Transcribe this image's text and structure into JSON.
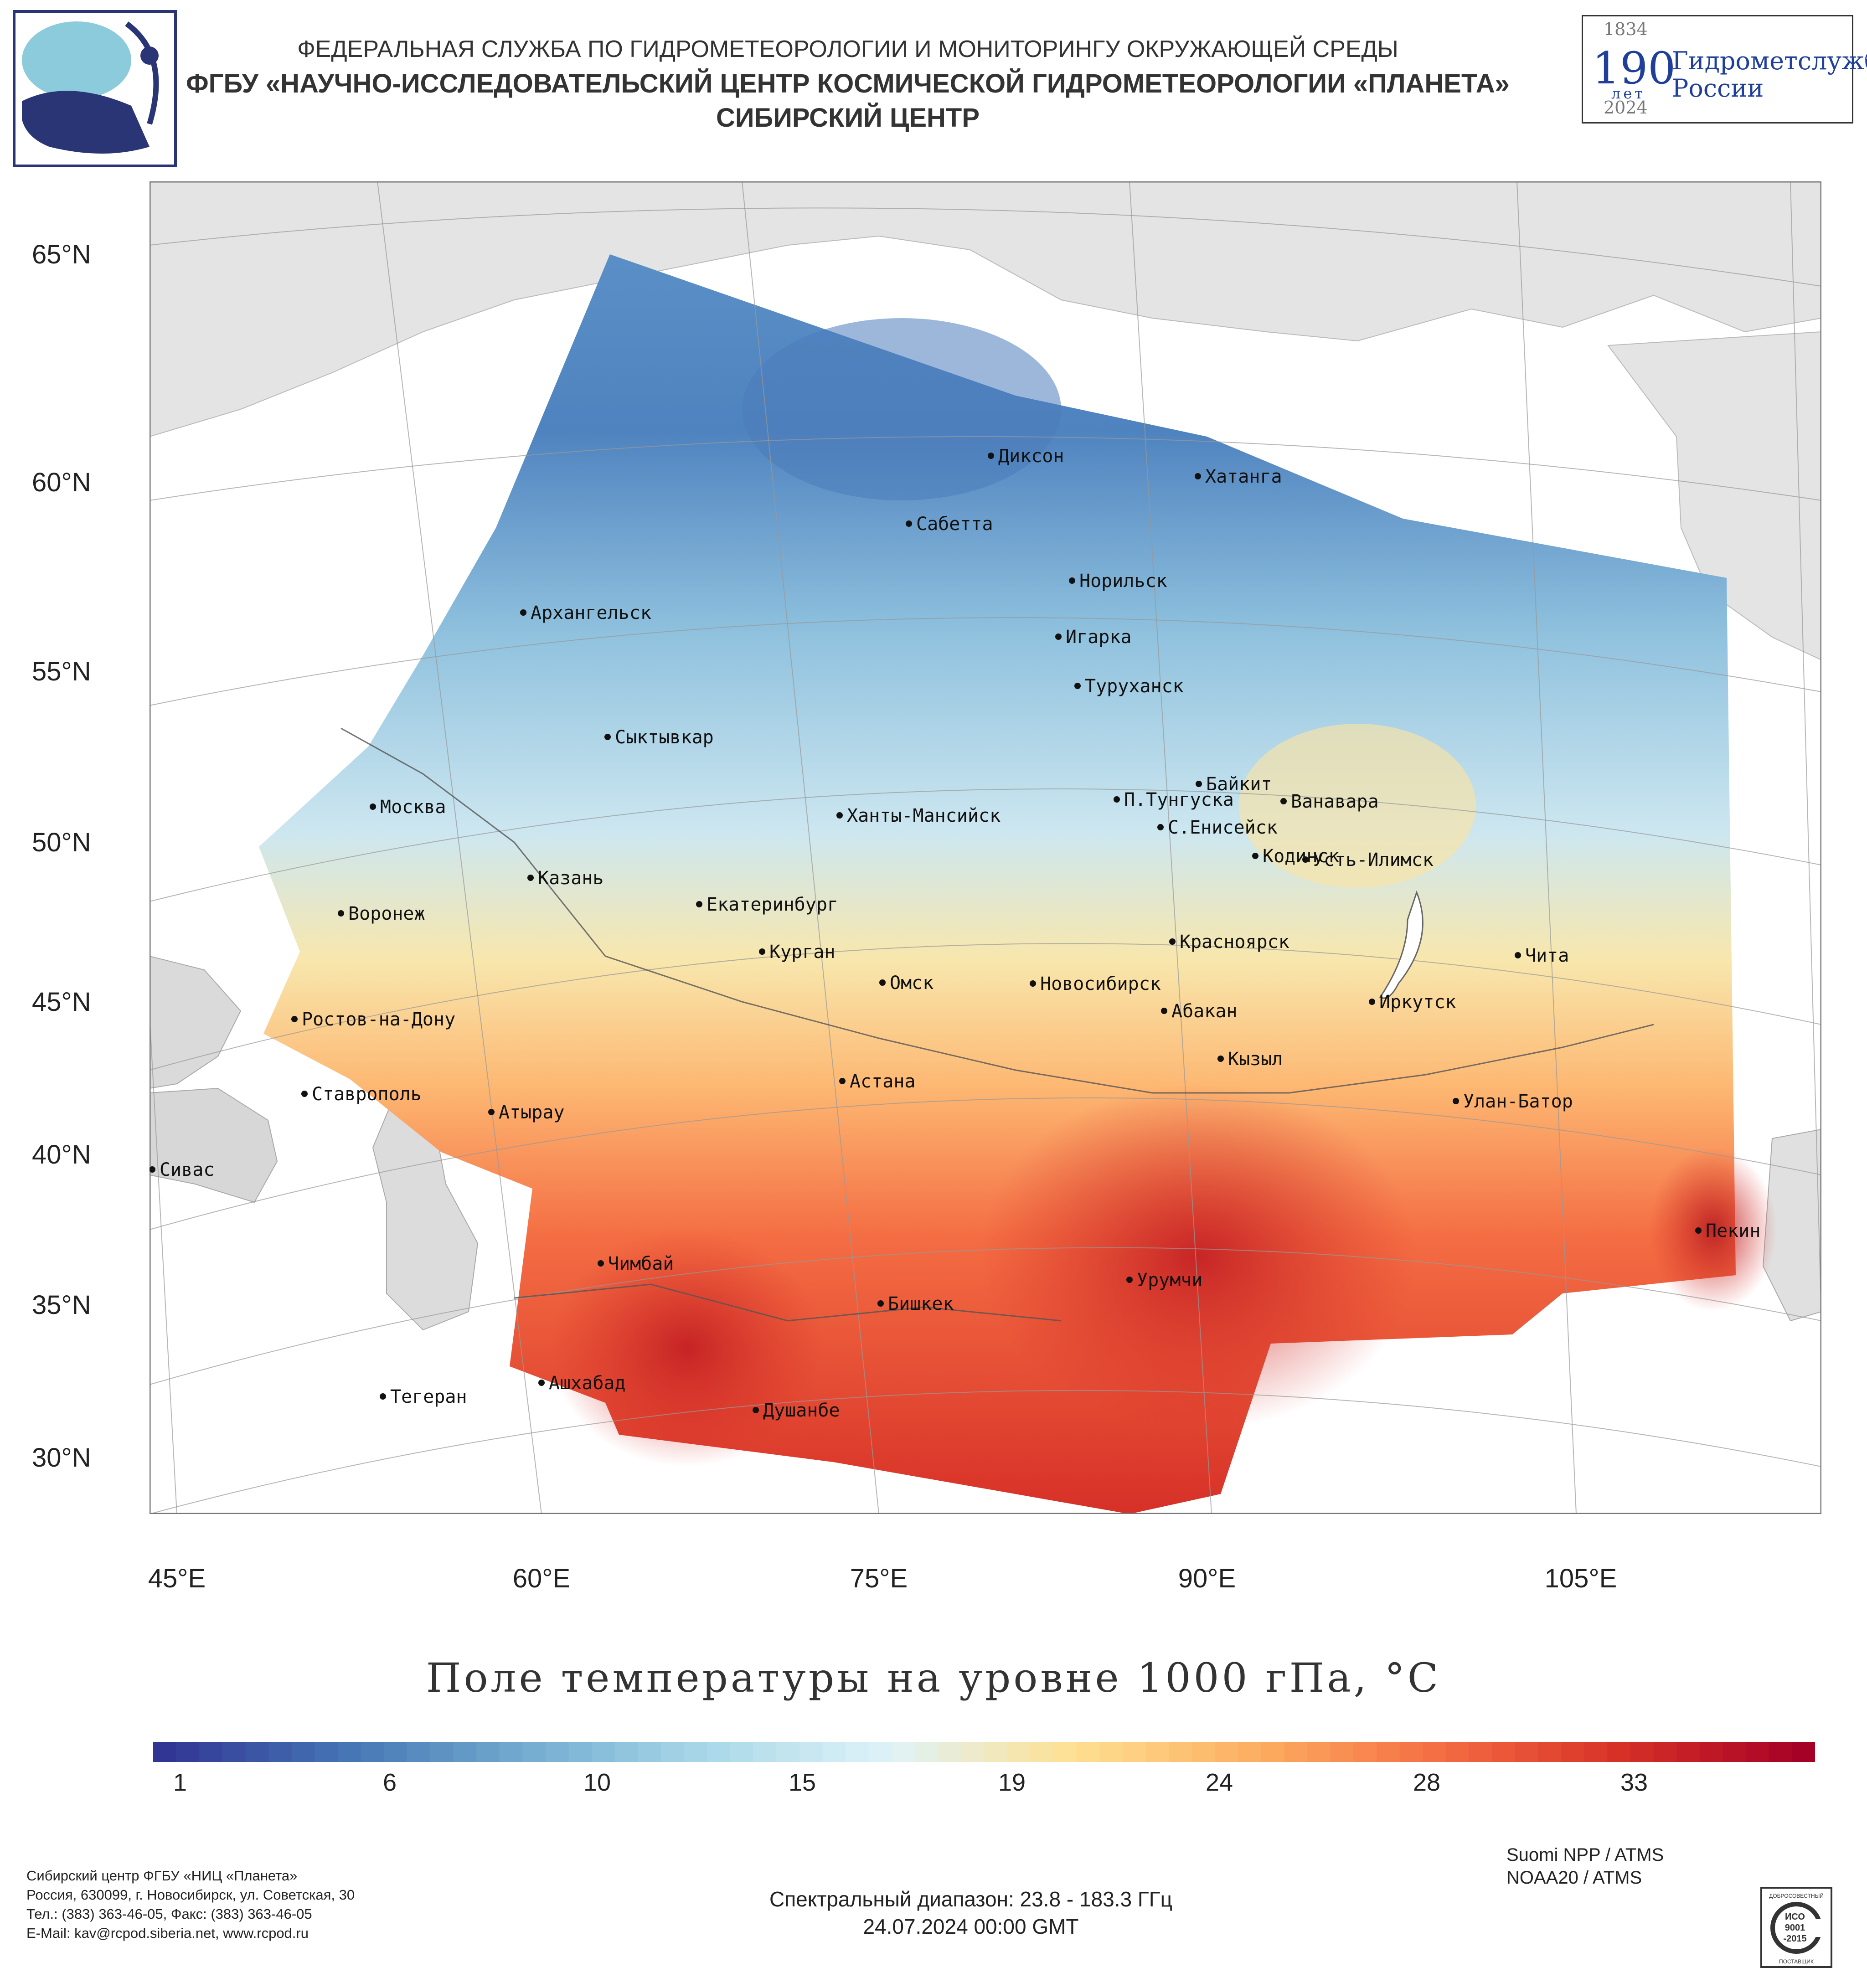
{
  "header": {
    "line1": "ФЕДЕРАЛЬНАЯ СЛУЖБА ПО ГИДРОМЕТЕОРОЛОГИИ И МОНИТОРИНГУ ОКРУЖАЮЩЕЙ СРЕДЫ",
    "line2": "ФГБУ «НАУЧНО-ИССЛЕДОВАТЕЛЬСКИЙ ЦЕНТР КОСМИЧЕСКОЙ ГИДРОМЕТЕОРОЛОГИИ «ПЛАНЕТА»",
    "line3": "СИБИРСКИЙ ЦЕНТР"
  },
  "anniversary_logo": {
    "year_start": "1834",
    "number": "190",
    "years_word": "лет",
    "org_line1": "Гидрометслужбе",
    "org_line2": "России",
    "year_end": "2024"
  },
  "map": {
    "lat_labels": [
      "65°N",
      "60°N",
      "55°N",
      "50°N",
      "45°N",
      "40°N",
      "35°N",
      "30°N"
    ],
    "lon_labels": [
      "45°E",
      "60°E",
      "75°E",
      "90°E",
      "105°E"
    ],
    "cities": [
      {
        "name": "Диксон"
      },
      {
        "name": "Хатанга"
      },
      {
        "name": "Сабетта"
      },
      {
        "name": "Норильск"
      },
      {
        "name": "Архангельск"
      },
      {
        "name": "Игарка"
      },
      {
        "name": "Туруханск"
      },
      {
        "name": "Сыктывкар"
      },
      {
        "name": "Байкит"
      },
      {
        "name": "П.Тунгуска"
      },
      {
        "name": "Ванавара"
      },
      {
        "name": "Москва"
      },
      {
        "name": "Ханты-Мансийск"
      },
      {
        "name": "С.Енисейск"
      },
      {
        "name": "Кодинск"
      },
      {
        "name": "Усть-Илимск"
      },
      {
        "name": "Казань"
      },
      {
        "name": "Екатеринбург"
      },
      {
        "name": "Воронеж"
      },
      {
        "name": "Красноярск"
      },
      {
        "name": "Курган"
      },
      {
        "name": "Чита"
      },
      {
        "name": "Омск"
      },
      {
        "name": "Новосибирск"
      },
      {
        "name": "Иркутск"
      },
      {
        "name": "Абакан"
      },
      {
        "name": "Ростов-на-Дону"
      },
      {
        "name": "Кызыл"
      },
      {
        "name": "Астана"
      },
      {
        "name": "Ставрополь"
      },
      {
        "name": "Улан-Батор"
      },
      {
        "name": "Атырау"
      },
      {
        "name": "Сивас"
      },
      {
        "name": "Пекин"
      },
      {
        "name": "Чимбай"
      },
      {
        "name": "Урумчи"
      },
      {
        "name": "Бишкек"
      },
      {
        "name": "Ашхабад"
      },
      {
        "name": "Тегеран"
      },
      {
        "name": "Душанбе"
      }
    ]
  },
  "title": "Поле температуры на уровне 1000 гПа, °C",
  "colorbar": {
    "ticks": [
      "1",
      "6",
      "10",
      "15",
      "19",
      "24",
      "28",
      "33"
    ],
    "colors": [
      "#313695",
      "#4575b4",
      "#74add1",
      "#abd9e9",
      "#e0f3f8",
      "#fee090",
      "#fdae61",
      "#f46d43",
      "#d73027",
      "#a50026"
    ]
  },
  "footer": {
    "org_lines": [
      "Сибирский центр ФГБУ «НИЦ «Планета»",
      "Россия, 630099, г. Новосибирск, ул. Советская, 30",
      "Тел.: (383) 363-46-05, Факс: (383) 363-46-05",
      "E-Mail: kav@rcpod.siberia.net, www.rcpod.ru"
    ],
    "satellites": [
      "Suomi NPP / ATMS",
      "NOAA20 / ATMS"
    ],
    "spectral": "Спектральный диапазон: 23.8 - 183.3 ГГц",
    "datetime": "24.07.2024 00:00 GMT",
    "iso": {
      "top": "ДОБРОСОВЕСТНЫЙ",
      "l1": "ИСО",
      "l2": "9001",
      "l3": "-2015",
      "bottom": "ПОСТАВЩИК"
    }
  }
}
